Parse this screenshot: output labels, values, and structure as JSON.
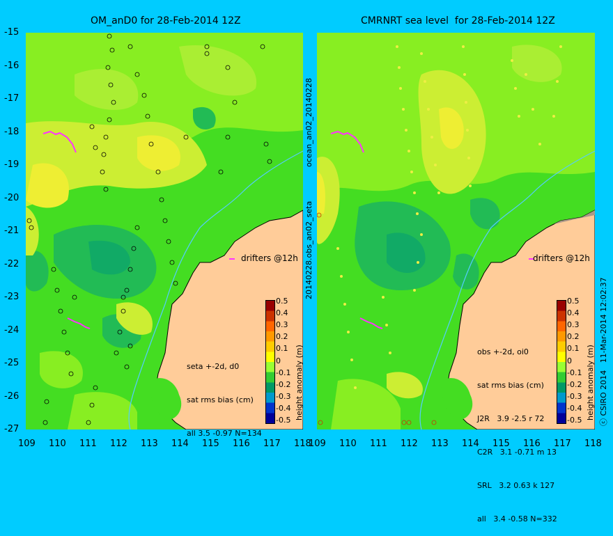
{
  "left_panel": {
    "title": "OM_anD0 for 28-Feb-2014 12Z",
    "stats": [
      "seta +-2d, d0",
      "sat rms bias (cm)",
      "all 3.5 -0.97 N=134"
    ],
    "drifters_label": "drifters @12h"
  },
  "right_panel": {
    "title": "CMRNRT sea level  for 28-Feb-2014 12Z",
    "stats": [
      "obs +-2d, oi0",
      "sat rms bias (cm)",
      "J2R   3.9 -2.5 r 72",
      "C2R   3.1 -0.71 m 13",
      "SRL   3.2 0.63 k 127",
      "all   3.4 -0.58 N=332"
    ],
    "drifters_label": "drifters @12h"
  },
  "axes": {
    "x_ticks": [
      "109",
      "110",
      "111",
      "112",
      "113",
      "114",
      "115",
      "116",
      "117",
      "118"
    ],
    "y_ticks": [
      "-15",
      "-16",
      "-17",
      "-18",
      "-19",
      "-20",
      "-21",
      "-22",
      "-23",
      "-24",
      "-25",
      "-26",
      "-27"
    ]
  },
  "colorbar": {
    "labels": [
      "0.5",
      "0.4",
      "0.3",
      "0.2",
      "0.1",
      "0",
      "-0.1",
      "-0.2",
      "-0.3",
      "-0.4",
      "-0.5"
    ],
    "title": "height anomaly (m)",
    "colors": [
      "#990000",
      "#cc3300",
      "#ff6600",
      "#ff9900",
      "#ffcc00",
      "#ffff00",
      "#99ff33",
      "#33cc33",
      "#009966",
      "#0099cc",
      "#0033cc",
      "#000099"
    ]
  },
  "side_text": {
    "middle_top": "ocean_an02_20140228",
    "middle_bottom": "20140228.obs_an02_seta",
    "right_edge": "ⓒ CSIRO 2014   11-Mar-2014 12:02:37"
  },
  "colors": {
    "background": "#00ccff",
    "land": "#ffcc99",
    "field_green": "#44dd22",
    "field_light": "#88ee22",
    "field_yellow": "#ccee33",
    "field_teal": "#22bb55",
    "drifter": "#ff33ff"
  }
}
